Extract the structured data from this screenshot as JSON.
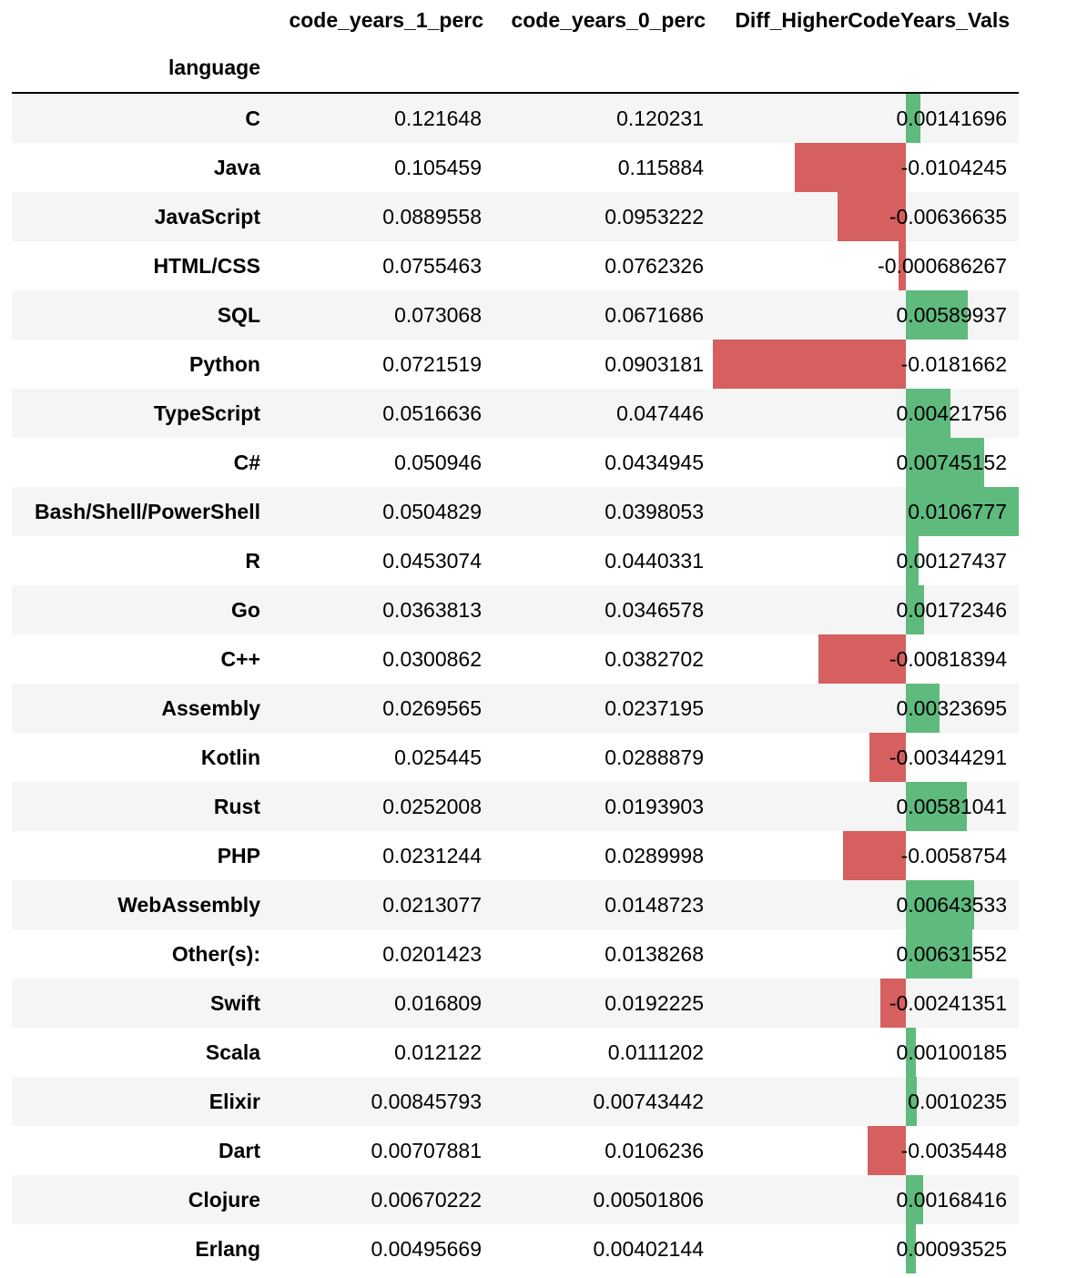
{
  "table": {
    "index_name": "language",
    "columns": [
      "code_years_1_perc",
      "code_years_0_perc",
      "Diff_HigherCodeYears_Vals"
    ],
    "colors": {
      "positive_bar": "#5fba7d",
      "negative_bar": "#d65f5f",
      "stripe": "#f5f5f5"
    },
    "rows": [
      {
        "language": "C",
        "v1": "0.121648",
        "v2": "0.120231",
        "diff": "0.00141696"
      },
      {
        "language": "Java",
        "v1": "0.105459",
        "v2": "0.115884",
        "diff": "-0.0104245"
      },
      {
        "language": "JavaScript",
        "v1": "0.0889558",
        "v2": "0.0953222",
        "diff": "-0.00636635"
      },
      {
        "language": "HTML/CSS",
        "v1": "0.0755463",
        "v2": "0.0762326",
        "diff": "-0.000686267"
      },
      {
        "language": "SQL",
        "v1": "0.073068",
        "v2": "0.0671686",
        "diff": "0.00589937"
      },
      {
        "language": "Python",
        "v1": "0.0721519",
        "v2": "0.0903181",
        "diff": "-0.0181662"
      },
      {
        "language": "TypeScript",
        "v1": "0.0516636",
        "v2": "0.047446",
        "diff": "0.00421756"
      },
      {
        "language": "C#",
        "v1": "0.050946",
        "v2": "0.0434945",
        "diff": "0.00745152"
      },
      {
        "language": "Bash/Shell/PowerShell",
        "v1": "0.0504829",
        "v2": "0.0398053",
        "diff": "0.0106777"
      },
      {
        "language": "R",
        "v1": "0.0453074",
        "v2": "0.0440331",
        "diff": "0.00127437"
      },
      {
        "language": "Go",
        "v1": "0.0363813",
        "v2": "0.0346578",
        "diff": "0.00172346"
      },
      {
        "language": "C++",
        "v1": "0.0300862",
        "v2": "0.0382702",
        "diff": "-0.00818394"
      },
      {
        "language": "Assembly",
        "v1": "0.0269565",
        "v2": "0.0237195",
        "diff": "0.00323695"
      },
      {
        "language": "Kotlin",
        "v1": "0.025445",
        "v2": "0.0288879",
        "diff": "-0.00344291"
      },
      {
        "language": "Rust",
        "v1": "0.0252008",
        "v2": "0.0193903",
        "diff": "0.00581041"
      },
      {
        "language": "PHP",
        "v1": "0.0231244",
        "v2": "0.0289998",
        "diff": "-0.0058754"
      },
      {
        "language": "WebAssembly",
        "v1": "0.0213077",
        "v2": "0.0148723",
        "diff": "0.00643533"
      },
      {
        "language": "Other(s):",
        "v1": "0.0201423",
        "v2": "0.0138268",
        "diff": "0.00631552"
      },
      {
        "language": "Swift",
        "v1": "0.016809",
        "v2": "0.0192225",
        "diff": "-0.00241351"
      },
      {
        "language": "Scala",
        "v1": "0.012122",
        "v2": "0.0111202",
        "diff": "0.00100185"
      },
      {
        "language": "Elixir",
        "v1": "0.00845793",
        "v2": "0.00743442",
        "diff": "0.0010235"
      },
      {
        "language": "Dart",
        "v1": "0.00707881",
        "v2": "0.0106236",
        "diff": "-0.0035448"
      },
      {
        "language": "Clojure",
        "v1": "0.00670222",
        "v2": "0.00501806",
        "diff": "0.00168416"
      },
      {
        "language": "Erlang",
        "v1": "0.00495669",
        "v2": "0.00402144",
        "diff": "0.00093525"
      }
    ]
  }
}
